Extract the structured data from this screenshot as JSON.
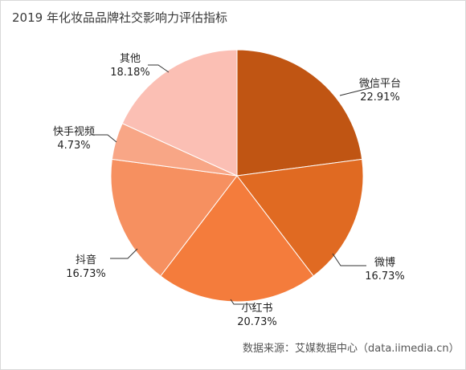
{
  "chart_data": {
    "type": "pie",
    "title": "2019 年化妆品品牌社交影响力评估指标",
    "source": "数据来源：艾媒数据中心（data.iimedia.cn）",
    "slices": [
      {
        "name": "微信平台",
        "value": 22.91,
        "label": "22.91%",
        "color": "#c05513"
      },
      {
        "name": "微博",
        "value": 16.73,
        "label": "16.73%",
        "color": "#e06a22"
      },
      {
        "name": "小红书",
        "value": 20.73,
        "label": "20.73%",
        "color": "#f47c3c"
      },
      {
        "name": "抖音",
        "value": 16.73,
        "label": "16.73%",
        "color": "#f69060"
      },
      {
        "name": "快手视频",
        "value": 4.73,
        "label": "4.73%",
        "color": "#f8a686"
      },
      {
        "name": "其他",
        "value": 18.18,
        "label": "18.18%",
        "color": "#fbbfb4"
      }
    ]
  }
}
